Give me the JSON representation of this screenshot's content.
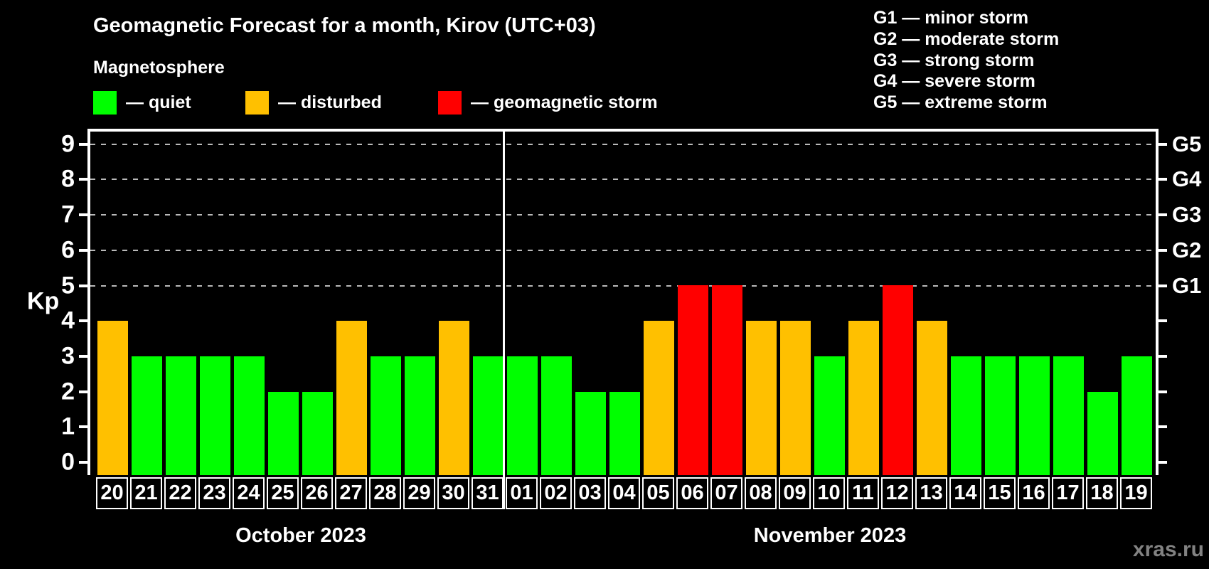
{
  "title": "Geomagnetic Forecast for a month, Kirov (UTC+03)",
  "subtitle": "Magnetosphere",
  "legend": {
    "items": [
      {
        "status": "quiet",
        "color": "#00ff00",
        "label": "— quiet"
      },
      {
        "status": "disturbed",
        "color": "#ffc000",
        "label": "— disturbed"
      },
      {
        "status": "storm",
        "color": "#ff0000",
        "label": "— geomagnetic storm"
      }
    ]
  },
  "g_scale_legend": {
    "items": [
      "G1 — minor storm",
      "G2 — moderate storm",
      "G3 — strong storm",
      "G4 — severe storm",
      "G5 — extreme storm"
    ]
  },
  "watermark": "xras.ru",
  "chart_data": {
    "type": "bar",
    "ylabel": "Kp",
    "ylim": [
      0,
      9
    ],
    "yticks": [
      0,
      1,
      2,
      3,
      4,
      5,
      6,
      7,
      8,
      9
    ],
    "gridlines_kp": [
      5,
      6,
      7,
      8,
      9
    ],
    "right_axis_labels": [
      {
        "kp": 5,
        "label": "G1"
      },
      {
        "kp": 6,
        "label": "G2"
      },
      {
        "kp": 7,
        "label": "G3"
      },
      {
        "kp": 8,
        "label": "G4"
      },
      {
        "kp": 9,
        "label": "G5"
      }
    ],
    "status_colors": {
      "quiet": "#00ff00",
      "disturbed": "#ffc000",
      "storm": "#ff0000"
    },
    "months": [
      {
        "label": "October 2023",
        "key": "oct",
        "start_index": 0,
        "end_index": 11
      },
      {
        "label": "November 2023",
        "key": "nov",
        "start_index": 12,
        "end_index": 30
      }
    ],
    "days": [
      {
        "day": "20",
        "kp": 4,
        "status": "disturbed"
      },
      {
        "day": "21",
        "kp": 3,
        "status": "quiet"
      },
      {
        "day": "22",
        "kp": 3,
        "status": "quiet"
      },
      {
        "day": "23",
        "kp": 3,
        "status": "quiet"
      },
      {
        "day": "24",
        "kp": 3,
        "status": "quiet"
      },
      {
        "day": "25",
        "kp": 2,
        "status": "quiet"
      },
      {
        "day": "26",
        "kp": 2,
        "status": "quiet"
      },
      {
        "day": "27",
        "kp": 4,
        "status": "disturbed"
      },
      {
        "day": "28",
        "kp": 3,
        "status": "quiet"
      },
      {
        "day": "29",
        "kp": 3,
        "status": "quiet"
      },
      {
        "day": "30",
        "kp": 4,
        "status": "disturbed"
      },
      {
        "day": "31",
        "kp": 3,
        "status": "quiet"
      },
      {
        "day": "01",
        "kp": 3,
        "status": "quiet"
      },
      {
        "day": "02",
        "kp": 3,
        "status": "quiet"
      },
      {
        "day": "03",
        "kp": 2,
        "status": "quiet"
      },
      {
        "day": "04",
        "kp": 2,
        "status": "quiet"
      },
      {
        "day": "05",
        "kp": 4,
        "status": "disturbed"
      },
      {
        "day": "06",
        "kp": 5,
        "status": "storm"
      },
      {
        "day": "07",
        "kp": 5,
        "status": "storm"
      },
      {
        "day": "08",
        "kp": 4,
        "status": "disturbed"
      },
      {
        "day": "09",
        "kp": 4,
        "status": "disturbed"
      },
      {
        "day": "10",
        "kp": 3,
        "status": "quiet"
      },
      {
        "day": "11",
        "kp": 4,
        "status": "disturbed"
      },
      {
        "day": "12",
        "kp": 5,
        "status": "storm"
      },
      {
        "day": "13",
        "kp": 4,
        "status": "disturbed"
      },
      {
        "day": "14",
        "kp": 3,
        "status": "quiet"
      },
      {
        "day": "15",
        "kp": 3,
        "status": "quiet"
      },
      {
        "day": "16",
        "kp": 3,
        "status": "quiet"
      },
      {
        "day": "17",
        "kp": 3,
        "status": "quiet"
      },
      {
        "day": "18",
        "kp": 2,
        "status": "quiet"
      },
      {
        "day": "19",
        "kp": 3,
        "status": "quiet"
      }
    ]
  }
}
